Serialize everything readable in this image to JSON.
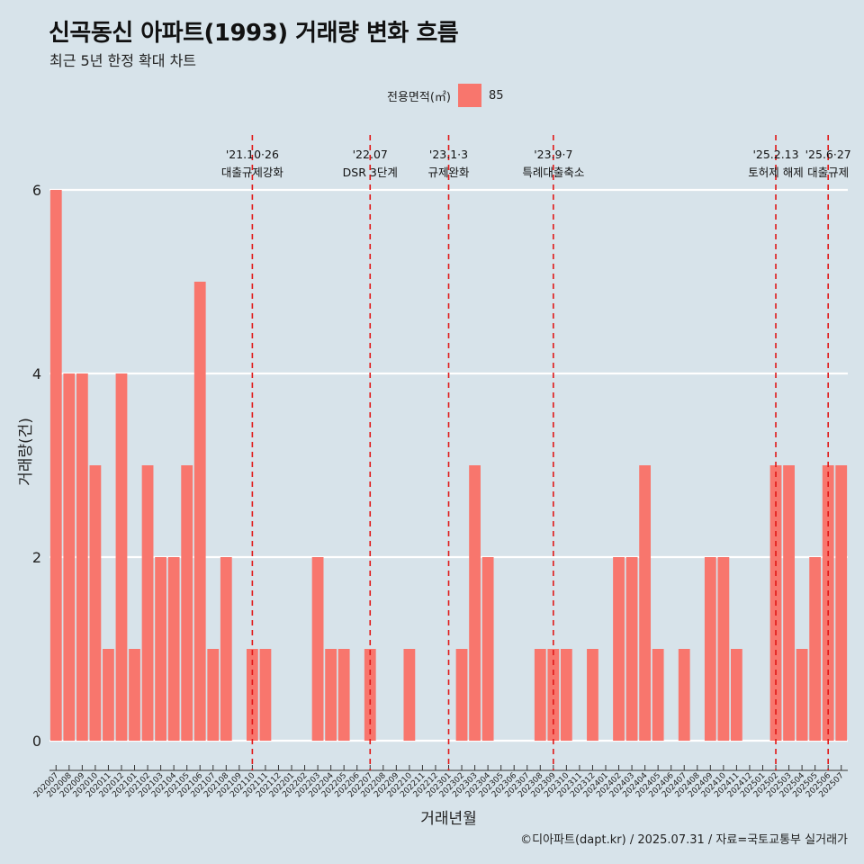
{
  "title": "신곡동신 아파트(1993) 거래량 변화 흐름",
  "subtitle": "최근 5년 한정 확대 차트",
  "legend": {
    "title": "전용면적(㎡)",
    "item": "85",
    "color": "#f8766d"
  },
  "caption": "©디아파트(dapt.kr) / 2025.07.31 / 자료=국토교통부 실거래가",
  "chart_data": {
    "type": "bar",
    "xlabel": "거래년월",
    "ylabel": "거래량(건)",
    "ylim": [
      0,
      6
    ],
    "yticks": [
      0,
      2,
      4,
      6
    ],
    "grid": true,
    "legend_position": "top",
    "bar_color": "#f8766d",
    "categories": [
      "202007",
      "202008",
      "202009",
      "202010",
      "202011",
      "202012",
      "202101",
      "202102",
      "202103",
      "202104",
      "202105",
      "202106",
      "202107",
      "202108",
      "202109",
      "202110",
      "202111",
      "202112",
      "202201",
      "202202",
      "202203",
      "202204",
      "202205",
      "202206",
      "202207",
      "202208",
      "202209",
      "202210",
      "202211",
      "202212",
      "202301",
      "202302",
      "202303",
      "202304",
      "202305",
      "202306",
      "202307",
      "202308",
      "202309",
      "202310",
      "202311",
      "202312",
      "202401",
      "202402",
      "202403",
      "202404",
      "202405",
      "202406",
      "202407",
      "202408",
      "202409",
      "202410",
      "202411",
      "202412",
      "202501",
      "202502",
      "202503",
      "202504",
      "202505",
      "202506",
      "202507"
    ],
    "series": [
      {
        "name": "85",
        "values": [
          6,
          4,
          4,
          3,
          1,
          4,
          1,
          3,
          2,
          2,
          3,
          5,
          1,
          2,
          0,
          1,
          1,
          0,
          0,
          0,
          2,
          1,
          1,
          0,
          1,
          0,
          0,
          1,
          0,
          0,
          0,
          1,
          3,
          2,
          0,
          0,
          0,
          1,
          1,
          1,
          0,
          1,
          0,
          2,
          2,
          3,
          1,
          0,
          1,
          0,
          2,
          2,
          1,
          0,
          0,
          3,
          3,
          1,
          2,
          3,
          3
        ]
      }
    ],
    "annotations": [
      {
        "at": "202110",
        "date": "'21.10·26",
        "label": "대출규제강화"
      },
      {
        "at": "202207",
        "date": "'22.07",
        "label": "DSR 3단계"
      },
      {
        "at": "202301",
        "date": "'23.1·3",
        "label": "규제완화"
      },
      {
        "at": "202309",
        "date": "'23.9·7",
        "label": "특례대출축소"
      },
      {
        "at": "202502",
        "date": "'25.2.13",
        "label": "토허제 해제"
      },
      {
        "at": "202506",
        "date": "'25.6·27",
        "label": "대출규제"
      }
    ]
  }
}
